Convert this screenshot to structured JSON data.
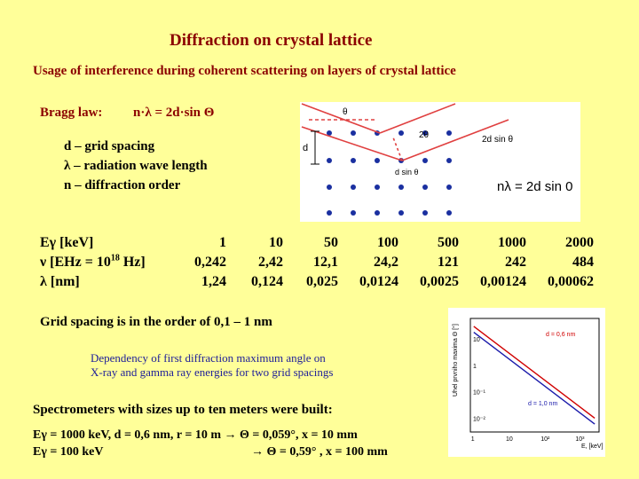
{
  "title": "Diffraction on crystal lattice",
  "subtitle": "Usage of interference during coherent scattering on layers of crystal lattice",
  "bragg": {
    "label": "Bragg law:",
    "formula": "n·λ = 2d·sin Θ"
  },
  "definitions": [
    "d – grid spacing",
    "λ – radiation wave length",
    "n – diffraction order"
  ],
  "diagram": {
    "theta_label": "θ",
    "two_theta_label": "2θ",
    "d_label": "d",
    "d_sin_label": "d sin θ",
    "two_d_sin_label": "2d sin θ",
    "law_label": "nλ = 2d sin 0"
  },
  "table": {
    "row1_label": "Eγ [keV]",
    "row2_label": "ν  [EHz = 10",
    "row2_exp": "18",
    "row2_label_end": " Hz]",
    "row3_label": "λ  [nm]",
    "energy": [
      "1",
      "10",
      "50",
      "100",
      "500",
      "1000",
      "2000"
    ],
    "frequency": [
      "0,242",
      "2,42",
      "12,1",
      "24,2",
      "121",
      "242",
      "484"
    ],
    "wavelength": [
      "1,24",
      "0,124",
      "0,025",
      "0,0124",
      "0,0025",
      "0,00124",
      "0,00062"
    ]
  },
  "grid_note": "Grid spacing is in the order of 0,1 – 1 nm",
  "caption_line1": "Dependency of first diffraction maximum angle on",
  "caption_line2": "X-ray and gamma ray energies for two grid spacings",
  "spectrometers": "Spectrometers with sizes up to ten meters were built:",
  "example1": "Eγ = 1000 keV, d = 0,6 nm, r = 10 m → Θ = 0,059°, x = 10 mm",
  "example2_left": "Eγ = 100 keV",
  "example2_right": "→ Θ = 0,59° , x = 100 mm",
  "chart_data": {
    "type": "line",
    "xlabel": "E, [keV]",
    "ylabel": "Uhel prvniho maxima Θ [°]",
    "xscale": "log",
    "yscale": "log",
    "x_ticks": [
      "1",
      "10",
      "10²",
      "10³"
    ],
    "y_ticks": [
      "10",
      "1",
      "10⁻¹",
      "10⁻²"
    ],
    "series": [
      {
        "name": "d = 0,6 nm",
        "color": "#d00000",
        "x": [
          1,
          3000
        ],
        "y": [
          30,
          0.01
        ]
      },
      {
        "name": "d = 1,0 nm",
        "color": "#1a1aaa",
        "x": [
          1,
          3000
        ],
        "y": [
          18,
          0.006
        ]
      }
    ]
  },
  "colors": {
    "background": "#ffff99",
    "title": "#8b0000",
    "caption": "#1e1e99",
    "ray": "#e04040",
    "atom": "#1a2fa0"
  }
}
